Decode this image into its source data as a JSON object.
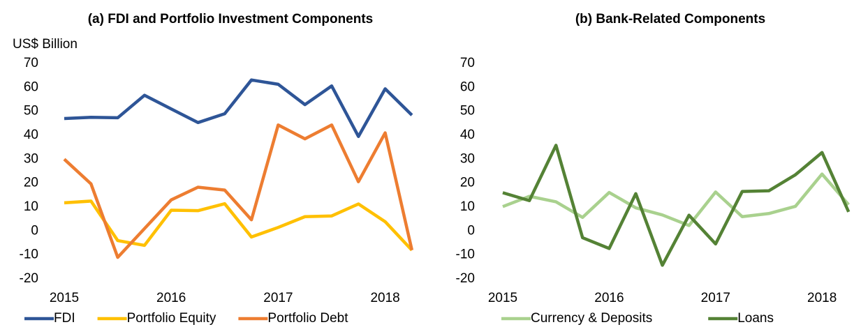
{
  "chart_data": [
    {
      "type": "line",
      "title": "(a)   FDI and Portfolio Investment Components",
      "y_label": "US$ Billion",
      "categories": [
        "2015",
        null,
        null,
        null,
        "2016",
        null,
        null,
        null,
        "2017",
        null,
        null,
        null,
        "2018",
        null
      ],
      "ylim": [
        -20,
        70
      ],
      "yticks": [
        -20,
        -10,
        0,
        10,
        20,
        30,
        40,
        50,
        60,
        70
      ],
      "grid": false,
      "legend": "bottom",
      "series": [
        {
          "name": "FDI",
          "color": "#2e5597",
          "values": [
            47,
            47.5,
            47.3,
            56.7,
            51,
            45.3,
            49,
            63.1,
            61.3,
            52.8,
            60.6,
            39.5,
            59.4,
            48.4
          ]
        },
        {
          "name": "Portfolio Equity",
          "color": "#ffc000",
          "values": [
            11.8,
            12.5,
            -4,
            -6,
            8.7,
            8.5,
            11.4,
            -2.5,
            1.5,
            6,
            6.3,
            11.3,
            3.9,
            -8
          ]
        },
        {
          "name": "Portfolio Debt",
          "color": "#ed7d31",
          "values": [
            30,
            19.7,
            -11,
            1,
            13,
            18.3,
            17.1,
            4.7,
            44.3,
            38.5,
            44.3,
            20.6,
            41,
            -8
          ]
        }
      ]
    },
    {
      "type": "line",
      "title": "(b)   Bank-Related Components",
      "categories": [
        "2015",
        null,
        null,
        null,
        "2016",
        null,
        null,
        null,
        "2017",
        null,
        null,
        null,
        "2018",
        null
      ],
      "ylim": [
        -20,
        70
      ],
      "yticks": [
        -20,
        -10,
        0,
        10,
        20,
        30,
        40,
        50,
        60,
        70
      ],
      "grid": false,
      "legend": "bottom",
      "series": [
        {
          "name": "Currency & Deposits",
          "color": "#a9d18e",
          "values": [
            10.2,
            14.5,
            12.2,
            5.7,
            16.1,
            9.7,
            6.7,
            2.3,
            16.3,
            6,
            7.3,
            10.3,
            23.8,
            11
          ]
        },
        {
          "name": "Loans",
          "color": "#548235",
          "values": [
            16,
            12.7,
            35.8,
            -2.8,
            -7.3,
            15.6,
            -14.3,
            6.6,
            -5.4,
            16.5,
            16.8,
            23.5,
            32.8,
            8
          ]
        }
      ]
    }
  ]
}
